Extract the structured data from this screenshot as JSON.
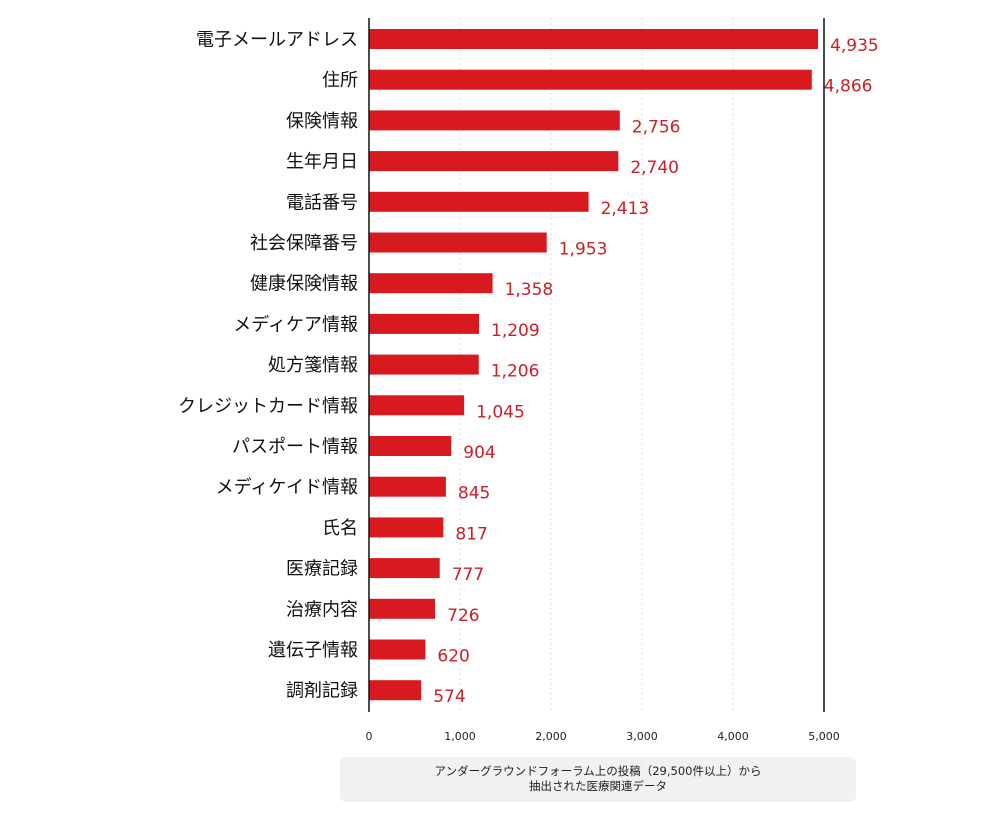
{
  "chart_data": {
    "type": "bar",
    "orientation": "horizontal",
    "categories": [
      "電子メールアドレス",
      "住所",
      "保険情報",
      "生年月日",
      "電話番号",
      "社会保障番号",
      "健康保険情報",
      "メディケア情報",
      "処方箋情報",
      "クレジットカード情報",
      "パスポート情報",
      "メディケイド情報",
      "氏名",
      "医療記録",
      "治療内容",
      "遺伝子情報",
      "調剤記録"
    ],
    "values": [
      4935,
      4866,
      2756,
      2740,
      2413,
      1953,
      1358,
      1209,
      1206,
      1045,
      904,
      845,
      817,
      777,
      726,
      620,
      574
    ],
    "value_labels": [
      "4,935",
      "4,866",
      "2,756",
      "2,740",
      "2,413",
      "1,953",
      "1,358",
      "1,209",
      "1,206",
      "1,045",
      "904",
      "845",
      "817",
      "777",
      "726",
      "620",
      "574"
    ],
    "x_ticks": [
      0,
      1000,
      2000,
      3000,
      4000,
      5000
    ],
    "x_tick_labels": [
      "0",
      "1,000",
      "2,000",
      "3,000",
      "4,000",
      "5,000"
    ],
    "xlim": [
      0,
      5000
    ],
    "grid": "dotted vertical",
    "colors": {
      "bar": "#d71920",
      "value_label": "#c8202a",
      "axis": "#111111",
      "grid": "#dcdcdc"
    }
  },
  "source_note": {
    "line1": "アンダーグラウンドフォーラム上の投稿（29,500件以上）から",
    "line2": "抽出された医療関連データ"
  }
}
